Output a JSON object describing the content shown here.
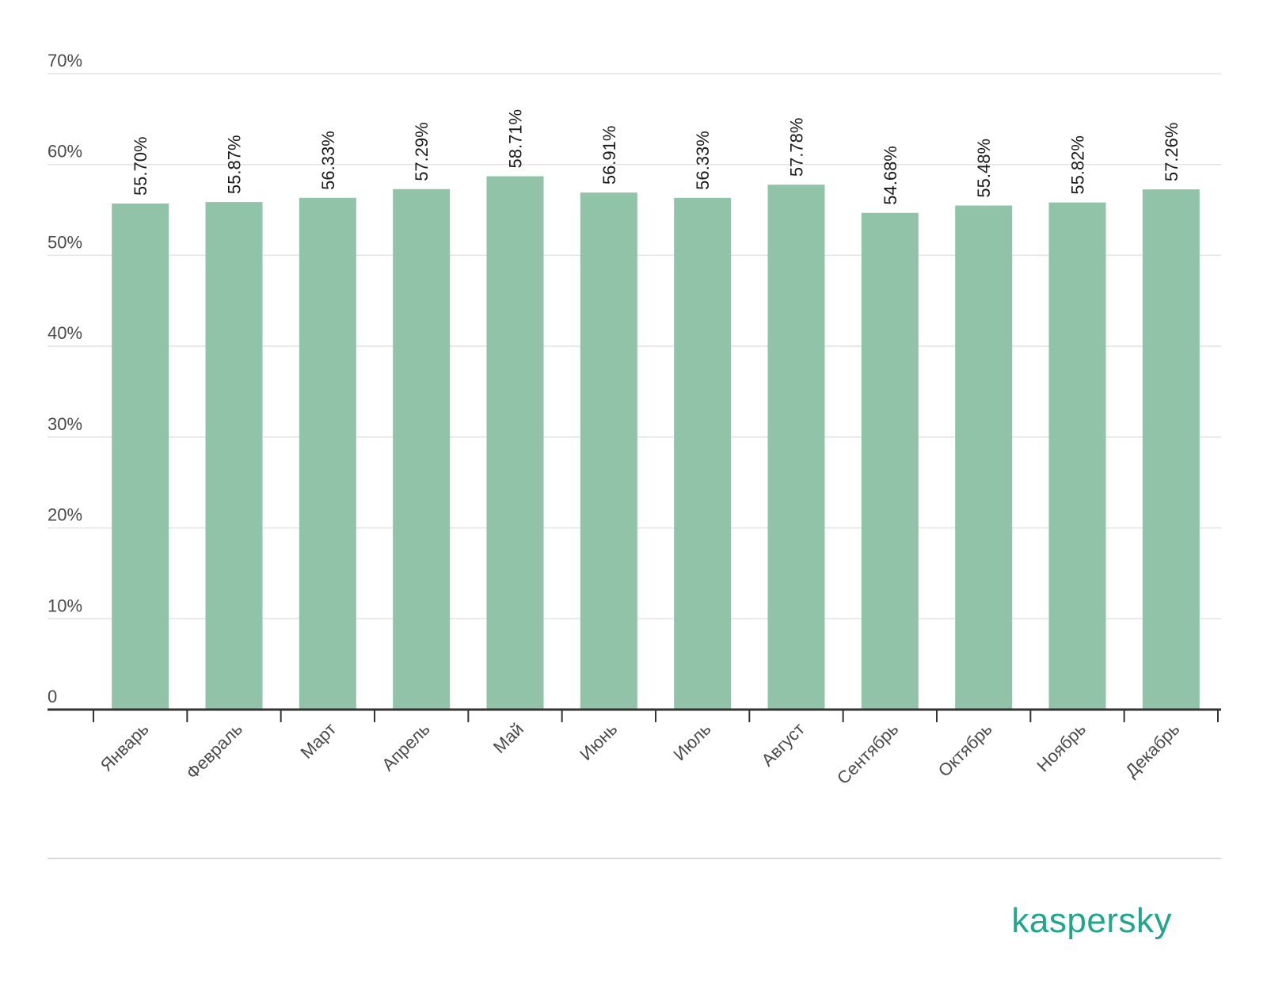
{
  "chart_data": {
    "type": "bar",
    "categories": [
      "Январь",
      "Февраль",
      "Март",
      "Апрель",
      "Май",
      "Июнь",
      "Июль",
      "Август",
      "Сентябрь",
      "Октябрь",
      "Ноябрь",
      "Декабрь"
    ],
    "values": [
      55.7,
      55.87,
      56.33,
      57.29,
      58.71,
      56.91,
      56.33,
      57.78,
      54.68,
      55.48,
      55.82,
      57.26
    ],
    "data_labels": [
      "55.70%",
      "55.87%",
      "56.33%",
      "57.29%",
      "58.71%",
      "56.91%",
      "56.33%",
      "57.78%",
      "54.68%",
      "55.48%",
      "55.82%",
      "57.26%"
    ],
    "y_ticks": [
      "0",
      "10%",
      "20%",
      "30%",
      "40%",
      "50%",
      "60%",
      "70%"
    ],
    "ylim": [
      0,
      70
    ],
    "grid": true,
    "title": "",
    "xlabel": "",
    "ylabel": ""
  },
  "colors": {
    "bar": "#90c3a8",
    "brand": "#1fa68b"
  },
  "brand": {
    "logo_text": "kaspersky"
  }
}
